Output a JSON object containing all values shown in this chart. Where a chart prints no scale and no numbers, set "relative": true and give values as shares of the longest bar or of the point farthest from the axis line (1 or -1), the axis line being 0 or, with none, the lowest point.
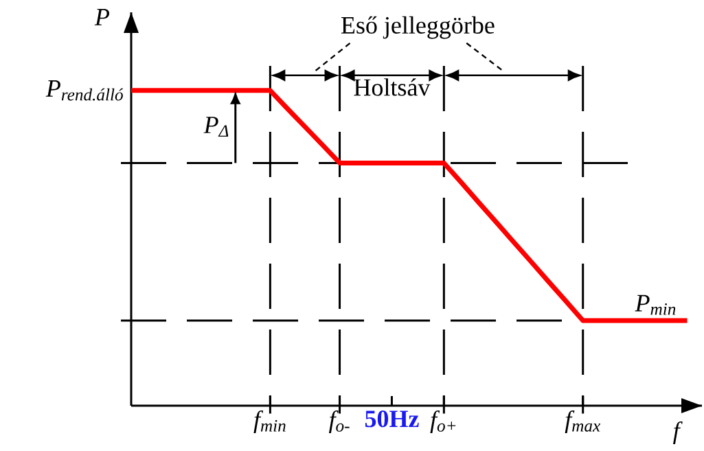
{
  "chart_data": {
    "type": "line",
    "relative": true,
    "xlabel": "f",
    "ylabel": "P",
    "categories": [
      null,
      null,
      null,
      null,
      null,
      null,
      null,
      null,
      "f$_{min}$",
      null,
      null,
      null,
      "f$_{o-}$",
      null,
      null,
      "50Hz",
      null,
      null,
      "f$_{o+}$",
      null,
      null,
      null,
      null,
      null,
      null,
      null,
      "f$_{max}$",
      null,
      null,
      null,
      null,
      null,
      null
    ],
    "series": [
      {
        "color": "#ff0000",
        "values": [
          1,
          1,
          1,
          1,
          1,
          1,
          1,
          1,
          1,
          0.942,
          0.885,
          0.828,
          0.77,
          0.77,
          0.77,
          0.77,
          0.77,
          0.77,
          0.77,
          0.708,
          0.645,
          0.583,
          0.52,
          0.458,
          0.395,
          0.333,
          0.27,
          0.27,
          0.27,
          0.27,
          0.27,
          0.27,
          0.27
        ]
      }
    ],
    "ref_lines": [
      {
        "axis": "x",
        "value": "f$_{min}$",
        "line_style": "dashed"
      },
      {
        "axis": "x",
        "value": "f$_{o-}$",
        "line_style": "dashed"
      },
      {
        "axis": "x",
        "value": "f$_{o+}$",
        "line_style": "dashed"
      },
      {
        "axis": "x",
        "value": "f$_{max}$",
        "line_style": "dashed"
      },
      {
        "axis": "y",
        "value": 0.77,
        "line_style": "dashed"
      },
      {
        "axis": "y",
        "value": 0.27,
        "line_style": "dashed"
      }
    ],
    "annotations": [
      "Eső jelleggörbe",
      "Holtsáv",
      "P$_{Δ}$",
      {
        "text": "P$_{min}$",
        "y": 0.27
      },
      "P$_{rend.álló}$"
    ],
    "marker": "none",
    "line_style": "solid"
  }
}
